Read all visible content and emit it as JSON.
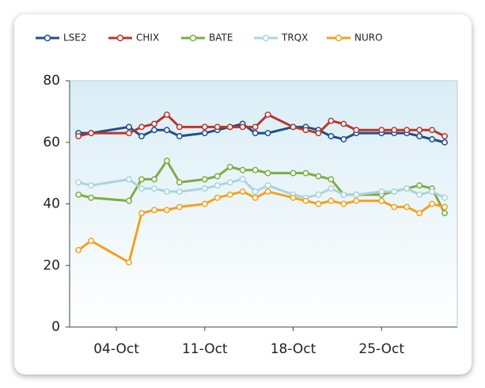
{
  "chart_data": {
    "type": "line",
    "x": [
      1,
      2,
      5,
      6,
      7,
      8,
      9,
      11,
      12,
      13,
      14,
      15,
      16,
      18,
      19,
      20,
      21,
      22,
      23,
      25,
      26,
      27,
      28,
      29,
      30
    ],
    "xlim": [
      0.3,
      31
    ],
    "xticks": [
      {
        "value": 4,
        "label": "04-Oct"
      },
      {
        "value": 11,
        "label": "11-Oct"
      },
      {
        "value": 18,
        "label": "18-Oct"
      },
      {
        "value": 25,
        "label": "25-Oct"
      }
    ],
    "ylim": [
      0,
      80
    ],
    "yticks": [
      0,
      20,
      40,
      60,
      80
    ],
    "legend": "top",
    "series": [
      {
        "name": "LSE2",
        "color": "#1f4e8c",
        "values": [
          63,
          63,
          65,
          62,
          64,
          64,
          62,
          63,
          64,
          65,
          66,
          63,
          63,
          65,
          65,
          64,
          62,
          61,
          63,
          63,
          63,
          63,
          62,
          61,
          60
        ]
      },
      {
        "name": "CHIX",
        "color": "#b8372a",
        "values": [
          62,
          63,
          63,
          65,
          66,
          69,
          65,
          65,
          65,
          65,
          65,
          65,
          69,
          65,
          64,
          63,
          67,
          66,
          64,
          64,
          64,
          64,
          64,
          64,
          62
        ]
      },
      {
        "name": "BATE",
        "color": "#7cad3f",
        "values": [
          43,
          42,
          41,
          48,
          48,
          54,
          47,
          48,
          49,
          52,
          51,
          51,
          50,
          50,
          50,
          49,
          48,
          43,
          43,
          43,
          44,
          45,
          46,
          45,
          37
        ]
      },
      {
        "name": "TRQX",
        "color": "#a9d4dc",
        "values": [
          47,
          46,
          48,
          45,
          45,
          44,
          44,
          45,
          46,
          47,
          48,
          44,
          46,
          43,
          42,
          43,
          45,
          43,
          43,
          44,
          44,
          45,
          43,
          44,
          42
        ]
      },
      {
        "name": "NURO",
        "color": "#f3a11c",
        "values": [
          25,
          28,
          21,
          37,
          38,
          38,
          39,
          40,
          42,
          43,
          44,
          42,
          44,
          42,
          41,
          40,
          41,
          40,
          41,
          41,
          39,
          39,
          37,
          40,
          39
        ]
      }
    ]
  }
}
